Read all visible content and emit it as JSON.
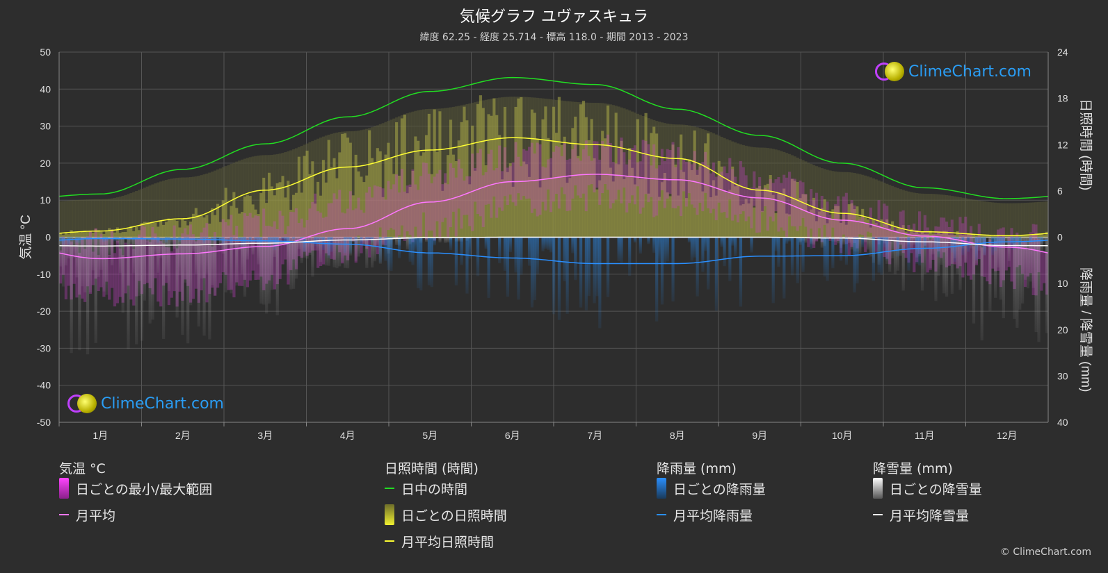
{
  "title": "気候グラフ ユヴァスキュラ",
  "subtitle": "緯度 62.25 - 経度 25.714 - 標高 118.0 - 期間 2013 - 2023",
  "logo_text": "ClimeChart.com",
  "copyright": "© ClimeChart.com",
  "colors": {
    "background": "#2d2d2d",
    "daylight": "#22dd22",
    "sunshine_avg": "#ffff33",
    "sunshine_daily": "#b6b64a",
    "temp_range": "#d040d0",
    "temp_avg": "#ff77ff",
    "rain": "#2a7fd4",
    "rain_avg": "#2a8fff",
    "snow": "#bfbfbf",
    "snow_avg": "#ffffff"
  },
  "legend": {
    "temp": {
      "heading": "気温 °C",
      "range_label": "日ごとの最小/最大範囲",
      "avg_label": "月平均"
    },
    "sun": {
      "heading": "日照時間 (時間)",
      "daylight_label": "日中の時間",
      "daily_label": "日ごとの日照時間",
      "avg_label": "月平均日照時間"
    },
    "rain": {
      "heading": "降雨量 (mm)",
      "daily_label": "日ごとの降雨量",
      "avg_label": "月平均降雨量"
    },
    "snow": {
      "heading": "降雪量 (mm)",
      "daily_label": "日ごとの降雪量",
      "avg_label": "月平均降雪量"
    }
  },
  "chart_data": {
    "type": "line",
    "categories": [
      "1月",
      "2月",
      "3月",
      "4月",
      "5月",
      "6月",
      "7月",
      "8月",
      "9月",
      "10月",
      "11月",
      "12月"
    ],
    "y_left": {
      "label": "気温 °C",
      "range": [
        -50,
        50
      ],
      "ticks": [
        50,
        40,
        30,
        20,
        10,
        0,
        -10,
        -20,
        -30,
        -40,
        -50
      ]
    },
    "y_right_top": {
      "label": "日照時間 (時間)",
      "range": [
        0,
        24
      ],
      "ticks": [
        24,
        18,
        12,
        6,
        0
      ]
    },
    "y_right_bottom": {
      "label": "降雨量 / 降雪量 (mm)",
      "range": [
        0,
        40
      ],
      "ticks": [
        0,
        10,
        20,
        30,
        40
      ]
    },
    "series": [
      {
        "name": "日中の時間",
        "unit": "hours",
        "values": [
          5.6,
          8.8,
          12.1,
          15.6,
          18.9,
          20.7,
          19.8,
          16.6,
          13.2,
          9.6,
          6.4,
          5.0
        ]
      },
      {
        "name": "月平均日照時間",
        "unit": "hours",
        "values": [
          0.8,
          2.4,
          6.1,
          9.1,
          11.3,
          12.9,
          12.0,
          10.2,
          6.1,
          3.1,
          0.7,
          0.2
        ]
      },
      {
        "name": "月平均",
        "unit": "°C",
        "values": [
          -5.8,
          -4.5,
          -2.5,
          2.3,
          9.5,
          15.0,
          17.0,
          15.5,
          10.6,
          4.6,
          0.3,
          -2.7
        ]
      },
      {
        "name": "月平均降雨量",
        "unit": "mm",
        "values": [
          0.3,
          0.4,
          0.8,
          1.5,
          3.4,
          4.5,
          5.7,
          5.7,
          4.1,
          4.0,
          2.4,
          1.0
        ]
      },
      {
        "name": "月平均降雪量",
        "unit": "mm",
        "values": [
          1.9,
          1.7,
          1.3,
          0.6,
          0.1,
          0.0,
          0.0,
          0.0,
          0.0,
          0.2,
          1.0,
          1.8
        ]
      }
    ],
    "daily_temp_band": {
      "name": "日ごとの最小/最大範囲",
      "min": [
        -15,
        -15,
        -11,
        -3,
        3,
        8,
        11,
        9,
        5,
        -1,
        -6,
        -11
      ],
      "max": [
        -1,
        0,
        4,
        10,
        17,
        22,
        24,
        22,
        16,
        8,
        3,
        0
      ]
    },
    "grid": true,
    "legend_position": "bottom"
  }
}
